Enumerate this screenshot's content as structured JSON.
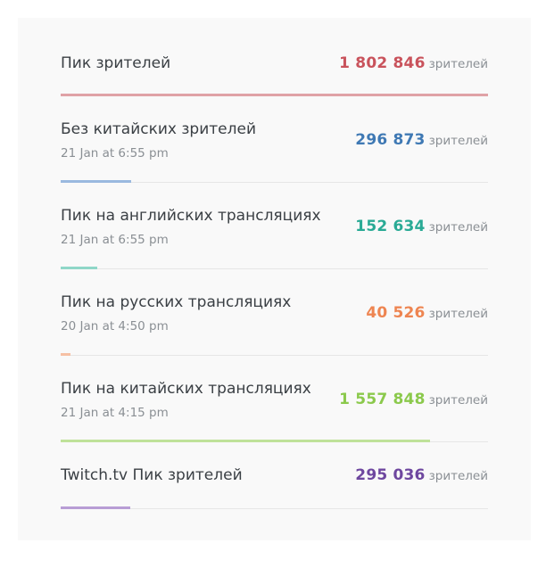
{
  "viewers_unit": "зрителей",
  "peak": {
    "label": "Пик зрителей",
    "value": "1 802 846",
    "value_raw": 1802846,
    "color": "#c9535c",
    "bar_color": "#e0a2a6"
  },
  "stats": [
    {
      "label": "Без китайских зрителей",
      "date": "21 Jan at 6:55 pm",
      "value": "296 873",
      "value_raw": 296873,
      "color": "#3f79b4",
      "bar_color": "#9ab9df"
    },
    {
      "label": "Пик на английских трансляциях",
      "date": "21 Jan at 6:55 pm",
      "value": "152 634",
      "value_raw": 152634,
      "color": "#29aa95",
      "bar_color": "#8fd7c8"
    },
    {
      "label": "Пик на русских трансляциях",
      "date": "20 Jan at 4:50 pm",
      "value": "40 526",
      "value_raw": 40526,
      "color": "#ee8551",
      "bar_color": "#f6c0a4"
    },
    {
      "label": "Пик на китайских трансляциях",
      "date": "21 Jan at 4:15 pm",
      "value": "1 557 848",
      "value_raw": 1557848,
      "color": "#8bc94c",
      "bar_color": "#bfe29a"
    },
    {
      "label": "Twitch.tv Пик зрителей",
      "date": "",
      "value": "295 036",
      "value_raw": 295036,
      "color": "#6e479f",
      "bar_color": "#b89dd5"
    }
  ]
}
